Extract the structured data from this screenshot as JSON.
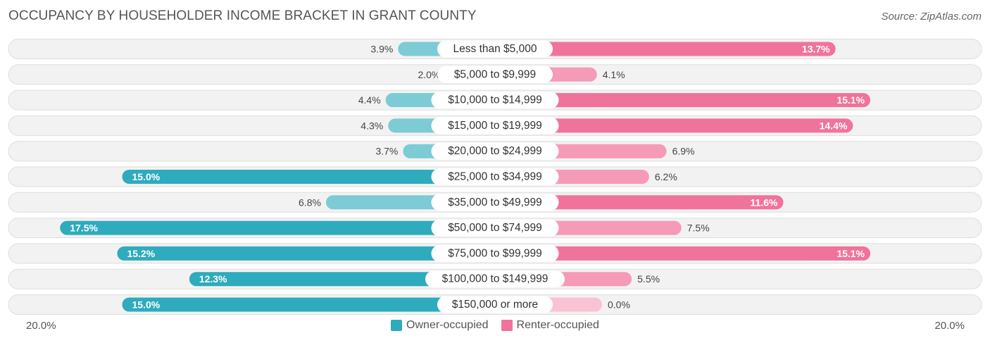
{
  "title": "OCCUPANCY BY HOUSEHOLDER INCOME BRACKET IN GRANT COUNTY",
  "source": "Source: ZipAtlas.com",
  "axis": {
    "left_label": "20.0%",
    "right_label": "20.0%"
  },
  "legend": {
    "owner": {
      "label": "Owner-occupied",
      "color": "#2eabbc"
    },
    "renter": {
      "label": "Renter-occupied",
      "color": "#f0739b"
    }
  },
  "chart_data": {
    "type": "bar",
    "orientation": "horizontal-diverging",
    "title": "OCCUPANCY BY HOUSEHOLDER INCOME BRACKET IN GRANT COUNTY",
    "xlim": [
      -20,
      20
    ],
    "unit": "%",
    "categories": [
      "Less than $5,000",
      "$5,000 to $9,999",
      "$10,000 to $14,999",
      "$15,000 to $19,999",
      "$20,000 to $24,999",
      "$25,000 to $34,999",
      "$35,000 to $49,999",
      "$50,000 to $74,999",
      "$75,000 to $99,999",
      "$100,000 to $149,999",
      "$150,000 or more"
    ],
    "series": [
      {
        "name": "Owner-occupied",
        "values": [
          3.9,
          2.0,
          4.4,
          4.3,
          3.7,
          15.0,
          6.8,
          17.5,
          15.2,
          12.3,
          15.0
        ],
        "labels": [
          "3.9%",
          "2.0%",
          "4.4%",
          "4.3%",
          "3.7%",
          "15.0%",
          "6.8%",
          "17.5%",
          "15.2%",
          "12.3%",
          "15.0%"
        ]
      },
      {
        "name": "Renter-occupied",
        "values": [
          13.7,
          4.1,
          15.1,
          14.4,
          6.9,
          6.2,
          11.6,
          7.5,
          15.1,
          5.5,
          0.0
        ],
        "labels": [
          "13.7%",
          "4.1%",
          "15.1%",
          "14.4%",
          "6.9%",
          "6.2%",
          "11.6%",
          "7.5%",
          "15.1%",
          "5.5%",
          "0.0%"
        ]
      }
    ]
  }
}
